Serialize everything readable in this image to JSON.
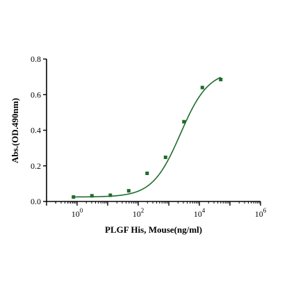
{
  "chart_data": {
    "type": "scatter",
    "title": "",
    "xlabel": "PLGF His, Mouse(ng/ml)",
    "ylabel": "Abs.(OD.490nm)",
    "x_scale": "log",
    "xlim": [
      0.1,
      1000000
    ],
    "ylim": [
      0,
      0.8
    ],
    "x_ticks": [
      {
        "value": 1,
        "base": "10",
        "exp": "0"
      },
      {
        "value": 100,
        "base": "10",
        "exp": "2"
      },
      {
        "value": 10000,
        "base": "10",
        "exp": "4"
      },
      {
        "value": 1000000,
        "base": "10",
        "exp": "6"
      }
    ],
    "y_ticks": [
      "0.0",
      "0.2",
      "0.4",
      "0.6",
      "0.8"
    ],
    "grid": false,
    "legend": "none",
    "series": [
      {
        "x": [
          0.76,
          3.05,
          12.2,
          48.8,
          195,
          781,
          3125,
          12500,
          50000
        ],
        "y": [
          0.025,
          0.032,
          0.035,
          0.06,
          0.158,
          0.248,
          0.448,
          0.64,
          0.685
        ]
      }
    ],
    "fit": {
      "model": "4PL",
      "bottom": 0.025,
      "top": 0.735,
      "ec50": 2400,
      "hill": 0.95
    },
    "colors": {
      "series": "#1f6b2a",
      "axis": "#000000"
    }
  }
}
